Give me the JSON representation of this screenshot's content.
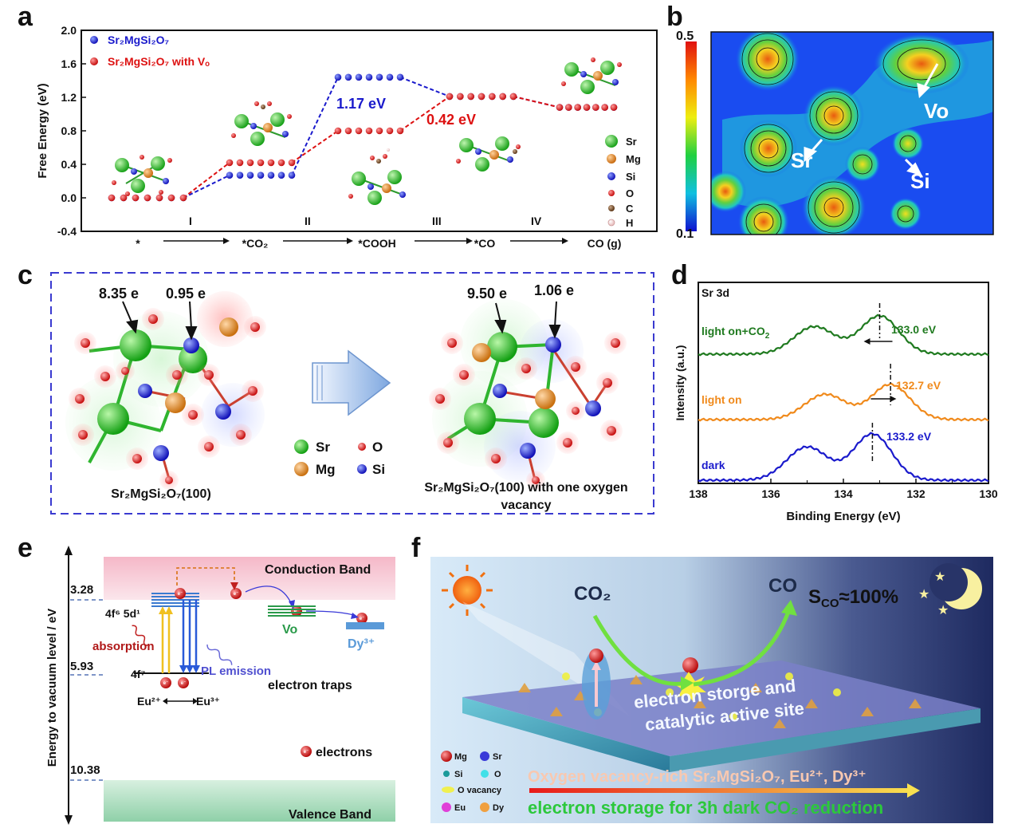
{
  "panel_labels": {
    "a": "a",
    "b": "b",
    "c": "c",
    "d": "d",
    "e": "e",
    "f": "f"
  },
  "chart_data": [
    {
      "type": "scatter",
      "panel": "a",
      "ylabel": "Free Energy (eV)",
      "ylim": [
        -0.4,
        2.0
      ],
      "yticks": [
        "2.0",
        "1.6",
        "1.2",
        "0.8",
        "0.4",
        "0.0",
        "-0.4"
      ],
      "x_categories": [
        "*",
        "*CO₂",
        "*COOH",
        "*CO",
        "CO (g)"
      ],
      "step_labels": [
        "I",
        "II",
        "III",
        "IV"
      ],
      "legend": [
        "Sr₂MgSi₂O₇",
        "Sr₂MgSi₂O₇ with Vₒ"
      ],
      "series": [
        {
          "name": "Sr₂MgSi₂O₇",
          "color": "#1a1acc",
          "values": [
            0.0,
            0.27,
            1.44,
            1.21,
            1.08
          ]
        },
        {
          "name": "Sr₂MgSi₂O₇ with Vₒ",
          "color": "#dd1111",
          "values": [
            0.0,
            0.42,
            0.8,
            1.21,
            1.08
          ]
        }
      ],
      "annotations": [
        "1.17 eV",
        "0.42 eV"
      ],
      "atom_legend": [
        "Sr",
        "Mg",
        "Si",
        "O",
        "C",
        "H"
      ]
    },
    {
      "type": "heatmap",
      "panel": "b",
      "colorbar_max": "0.5",
      "colorbar_min": "0.1",
      "labels": [
        "Vo",
        "Sr",
        "Si"
      ]
    },
    {
      "type": "line",
      "panel": "d",
      "title": "Sr 3d",
      "xlabel": "Binding Energy (eV)",
      "ylabel": "Intensity (a.u.)",
      "xlim": [
        138,
        130
      ],
      "xticks": [
        "138",
        "136",
        "134",
        "132",
        "130"
      ],
      "series": [
        {
          "name": "light on+CO₂",
          "color": "#1f7a1f",
          "peak": "133.0 eV",
          "peak_x": 133.0
        },
        {
          "name": "light on",
          "color": "#f08a1c",
          "peak": "132.7 eV",
          "peak_x": 132.7
        },
        {
          "name": "dark",
          "color": "#1a1acc",
          "peak": "133.2 eV",
          "peak_x": 133.2
        }
      ]
    }
  ],
  "panel_c": {
    "charge_left_sr": "8.35 e",
    "charge_left_si": "0.95 e",
    "charge_right_sr": "9.50 e",
    "charge_right_si": "1.06 e",
    "caption_left": "Sr₂MgSi₂O₇(100)",
    "caption_right_line1": "Sr₂MgSi₂O₇(100) with one oxygen",
    "caption_right_line2": "vacancy",
    "legend": [
      "Sr",
      "O",
      "Mg",
      "Si"
    ]
  },
  "panel_e": {
    "ylabel": "Energy to vacuum level / eV",
    "levels": [
      "3.28",
      "5.93",
      "10.38"
    ],
    "conduction_band": "Conduction Band",
    "valence_band": "Valence Band",
    "state_upper": "4f⁶ 5d¹",
    "state_lower": "4f⁷",
    "absorption": "absorption",
    "pl_emission": "PL emission",
    "eu_redox_left": "Eu²⁺",
    "eu_redox_right": "Eu³⁺",
    "vo": "Vo",
    "dy": "Dy³⁺",
    "traps": "electron traps",
    "electrons": "electrons",
    "e_symbol": "e⁻"
  },
  "panel_f": {
    "co2": "CO₂",
    "co": "CO",
    "selectivity": "S",
    "selectivity_sub": "CO",
    "selectivity_value": "≈100%",
    "storage_line1": "electron storge and",
    "storage_line2": "catalytic active site",
    "title_line": "Oxygen vacancy-rich Sr₂MgSi₂O₇, Eu²⁺, Dy³⁺",
    "bottom_line": "electron storage for 3h dark CO₂ reduction",
    "legend": [
      "Mg",
      "Sr",
      "Si",
      "O",
      "O vacancy",
      "Eu",
      "Dy"
    ]
  }
}
